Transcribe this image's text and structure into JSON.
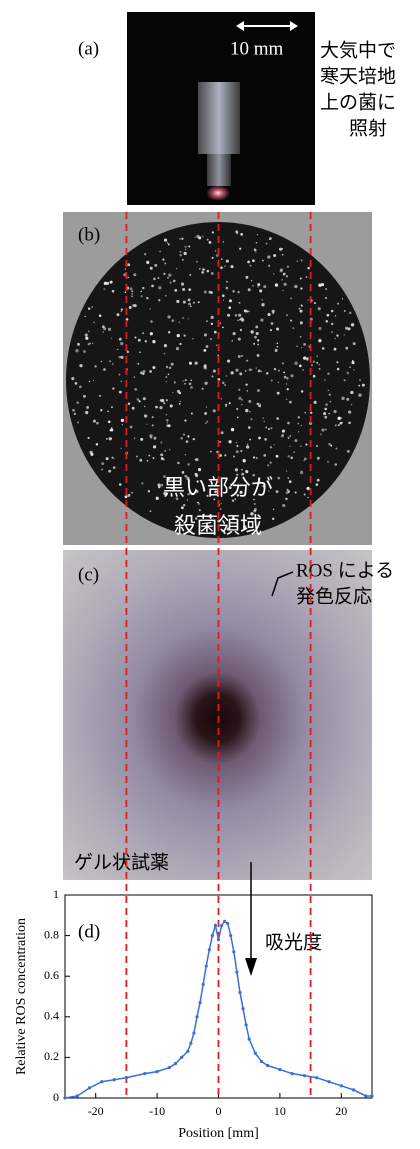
{
  "figure": {
    "panel_a": {
      "label": "(a)",
      "scale": "10 mm",
      "note": [
        "大気中で",
        "寒天培地",
        "上の菌に",
        "照射"
      ]
    },
    "panel_b": {
      "label": "(b)",
      "note": [
        "黒い部分が",
        "殺菌領域"
      ]
    },
    "panel_c": {
      "label": "(c)",
      "note": [
        "ROS による",
        "発色反応"
      ],
      "reagent": "ゲル状試薬"
    }
  },
  "chart_data": {
    "type": "line",
    "panel_label": "(d)",
    "annotation": "吸光度",
    "xlabel": "Position [mm]",
    "ylabel": "Relative ROS concentration",
    "xlim": [
      -25,
      25
    ],
    "ylim": [
      0,
      1
    ],
    "xticks": [
      -20,
      -10,
      0,
      10,
      20
    ],
    "yticks": [
      0,
      0.2,
      0.4,
      0.6,
      0.8,
      1
    ],
    "guides": [
      -15,
      0,
      15
    ],
    "guide_color": "#d62020",
    "x": [
      -25,
      -23,
      -21,
      -19,
      -17,
      -15,
      -12,
      -10,
      -8,
      -7,
      -6,
      -5,
      -4.5,
      -4,
      -3.5,
      -3,
      -2.5,
      -2,
      -1.5,
      -1,
      -0.5,
      0,
      0.5,
      1,
      1.5,
      2,
      2.5,
      3,
      3.5,
      4,
      4.5,
      5,
      6,
      7,
      8,
      10,
      12,
      14,
      16,
      18,
      20,
      22,
      24,
      25
    ],
    "series": [
      {
        "name": "Relative ROS concentration",
        "color": "#3a6fd8",
        "values": [
          0,
          0.01,
          0.05,
          0.08,
          0.09,
          0.1,
          0.12,
          0.13,
          0.15,
          0.17,
          0.2,
          0.23,
          0.27,
          0.32,
          0.4,
          0.47,
          0.56,
          0.65,
          0.73,
          0.8,
          0.85,
          0.78,
          0.85,
          0.87,
          0.86,
          0.8,
          0.72,
          0.62,
          0.52,
          0.44,
          0.36,
          0.29,
          0.22,
          0.18,
          0.16,
          0.14,
          0.12,
          0.11,
          0.1,
          0.08,
          0.06,
          0.04,
          0.01,
          0.01
        ]
      }
    ]
  }
}
